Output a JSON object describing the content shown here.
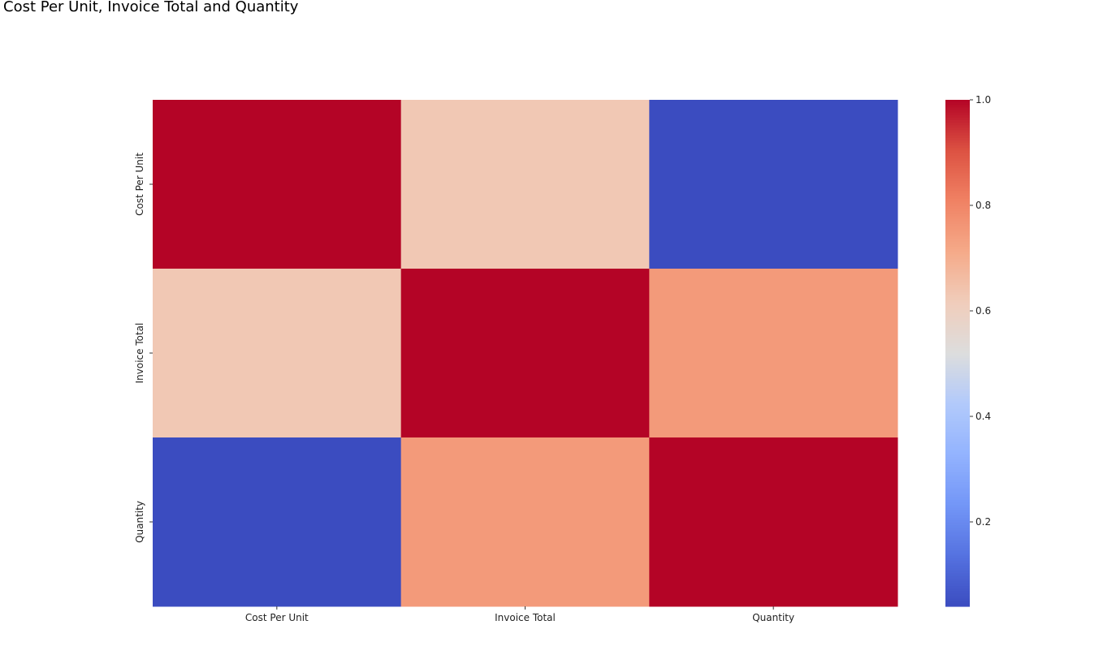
{
  "title": "Cost Per Unit, Invoice Total and Quantity",
  "chart_data": {
    "type": "heatmap",
    "rows": [
      "Cost Per Unit",
      "Invoice Total",
      "Quantity"
    ],
    "columns": [
      "Cost Per Unit",
      "Invoice Total",
      "Quantity"
    ],
    "values": [
      [
        1.0,
        0.63,
        0.04
      ],
      [
        0.63,
        1.0,
        0.75
      ],
      [
        0.04,
        0.75,
        1.0
      ]
    ],
    "colormap": "coolwarm",
    "colorbar": {
      "range": [
        0.04,
        1.0
      ],
      "ticks": [
        "0.2",
        "0.4",
        "0.6",
        "0.8",
        "1.0"
      ],
      "tick_values": [
        0.2,
        0.4,
        0.6,
        0.8,
        1.0
      ]
    },
    "colors": {
      "low": "#3b4cc0",
      "mid": "#dddddd",
      "high": "#b40426"
    }
  }
}
